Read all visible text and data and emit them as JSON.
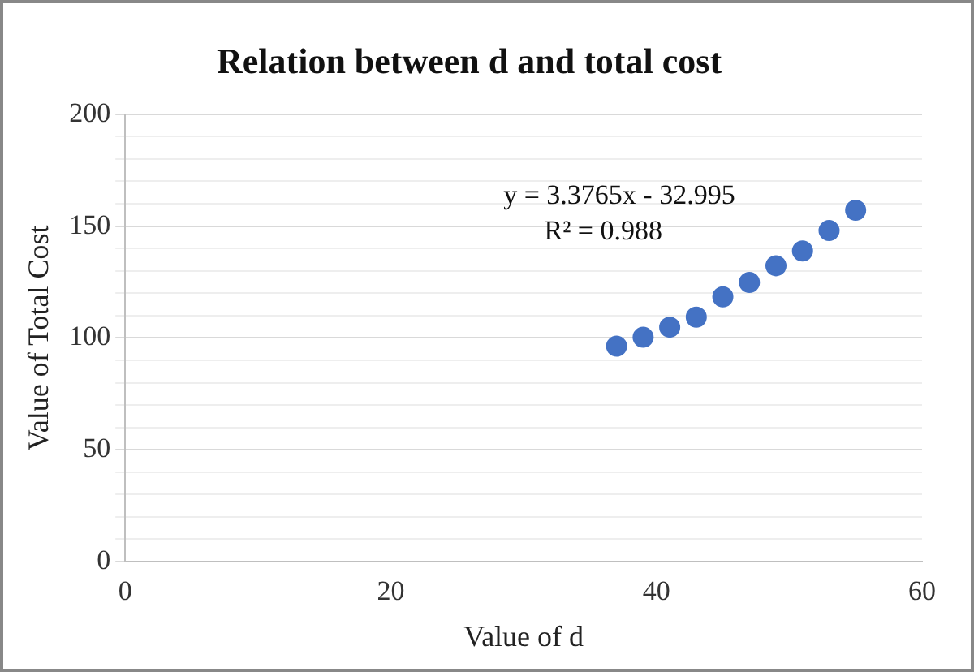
{
  "chart_data": {
    "type": "scatter",
    "title": "Relation between d and total cost",
    "xlabel": "Value of d",
    "ylabel": "Value of Total Cost",
    "x": [
      37,
      39,
      41,
      43,
      45,
      47,
      49,
      51,
      53,
      55
    ],
    "series": [
      {
        "color": "#4472c4",
        "values": [
          96.3,
          100.3,
          104.8,
          109.3,
          118.4,
          124.8,
          132.3,
          138.9,
          148,
          157.1
        ]
      }
    ],
    "xlim": [
      0,
      60
    ],
    "xticks": [
      0,
      20,
      40,
      60
    ],
    "ylim": [
      0,
      200
    ],
    "yticks": [
      0,
      {
        "value": 10,
        "label": null
      },
      {
        "value": 20,
        "label": null
      },
      {
        "value": 30,
        "label": null
      },
      {
        "value": 40,
        "label": null
      },
      50,
      {
        "value": 60,
        "label": null
      },
      {
        "value": 70,
        "label": null
      },
      {
        "value": 80,
        "label": null
      },
      {
        "value": 90,
        "label": null
      },
      100,
      {
        "value": 110,
        "label": null
      },
      {
        "value": 120,
        "label": null
      },
      {
        "value": 130,
        "label": null
      },
      {
        "value": 140,
        "label": null
      },
      150,
      {
        "value": 160,
        "label": null
      },
      {
        "value": 170,
        "label": null
      },
      {
        "value": 180,
        "label": null
      },
      {
        "value": 190,
        "label": null
      },
      200
    ],
    "grid": "y",
    "legend": false,
    "marker": "circle",
    "annotations": [
      "y = 3.3765x - 32.995",
      "R² = 0.988"
    ]
  }
}
